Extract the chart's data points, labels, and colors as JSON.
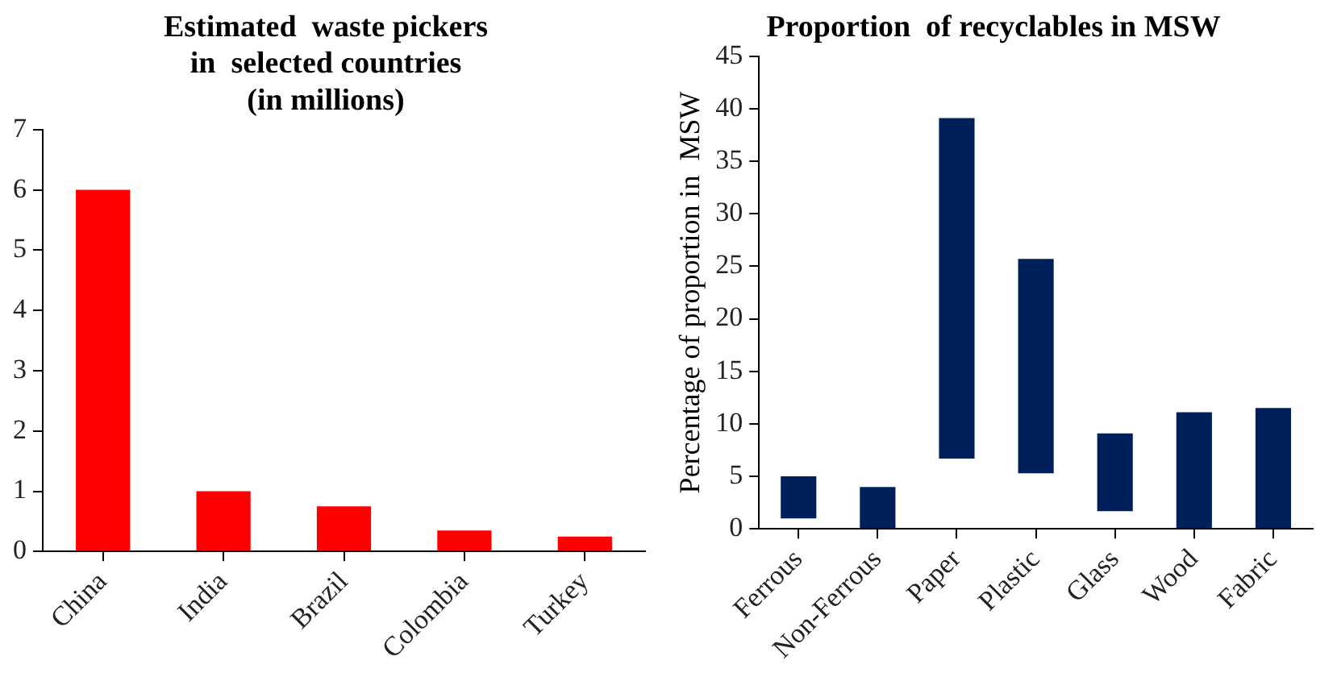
{
  "chart_data": [
    {
      "type": "bar",
      "title": "Estimated  waste pickers\nin  selected countries\n(in millions)",
      "categories": [
        "China",
        "India",
        "Brazil",
        "Colombia",
        "Turkey"
      ],
      "values": [
        6,
        1,
        0.75,
        0.35,
        0.25
      ],
      "color": "#ff0000",
      "ylim": [
        0,
        7
      ],
      "yticks": [
        0,
        1,
        2,
        3,
        4,
        5,
        6,
        7
      ],
      "grid": false,
      "legend": false
    },
    {
      "type": "bar",
      "title": "Proportion  of recyclables in MSW",
      "ylabel": "Percentage of proportion in  MSW",
      "categories": [
        "Ferrous",
        "Non-Ferrous",
        "Paper",
        "Plastic",
        "Glass",
        "Wood",
        "Fabric"
      ],
      "base": [
        1,
        0,
        6.7,
        5.3,
        1.7,
        0,
        0
      ],
      "values": [
        4,
        4,
        32.4,
        20.4,
        7.4,
        11.1,
        11.5
      ],
      "color": "#00205b",
      "ylim": [
        0,
        45
      ],
      "yticks": [
        0,
        5,
        10,
        15,
        20,
        25,
        30,
        35,
        40,
        45
      ],
      "grid": false,
      "legend": false
    }
  ]
}
